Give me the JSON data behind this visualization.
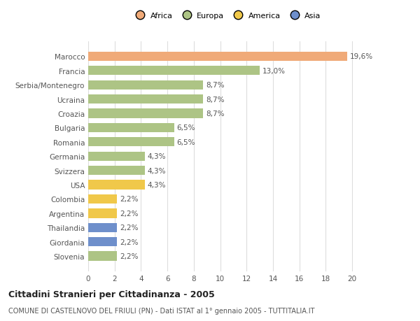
{
  "categories": [
    "Slovenia",
    "Giordania",
    "Thailandia",
    "Argentina",
    "Colombia",
    "USA",
    "Svizzera",
    "Germania",
    "Romania",
    "Bulgaria",
    "Croazia",
    "Ucraina",
    "Serbia/Montenegro",
    "Francia",
    "Marocco"
  ],
  "values": [
    2.2,
    2.2,
    2.2,
    2.2,
    2.2,
    4.3,
    4.3,
    4.3,
    6.5,
    6.5,
    8.7,
    8.7,
    8.7,
    13.0,
    19.6
  ],
  "labels": [
    "2,2%",
    "2,2%",
    "2,2%",
    "2,2%",
    "2,2%",
    "4,3%",
    "4,3%",
    "4,3%",
    "6,5%",
    "6,5%",
    "8,7%",
    "8,7%",
    "8,7%",
    "13,0%",
    "19,6%"
  ],
  "colors": [
    "#adc485",
    "#6e8fcb",
    "#6e8fcb",
    "#f0c84a",
    "#f0c84a",
    "#f0c84a",
    "#adc485",
    "#adc485",
    "#adc485",
    "#adc485",
    "#adc485",
    "#adc485",
    "#adc485",
    "#adc485",
    "#f0aa78"
  ],
  "legend": {
    "Africa": "#f0aa78",
    "Europa": "#adc485",
    "America": "#f0c84a",
    "Asia": "#6e8fcb"
  },
  "xlim": [
    0,
    21
  ],
  "xticks": [
    0,
    2,
    4,
    6,
    8,
    10,
    12,
    14,
    16,
    18,
    20
  ],
  "title": "Cittadini Stranieri per Cittadinanza - 2005",
  "subtitle": "COMUNE DI CASTELNOVO DEL FRIULI (PN) - Dati ISTAT al 1° gennaio 2005 - TUTTITALIA.IT",
  "background_color": "#ffffff",
  "bar_height": 0.65,
  "label_fontsize": 7.5,
  "tick_fontsize": 7.5,
  "title_fontsize": 9,
  "subtitle_fontsize": 7
}
